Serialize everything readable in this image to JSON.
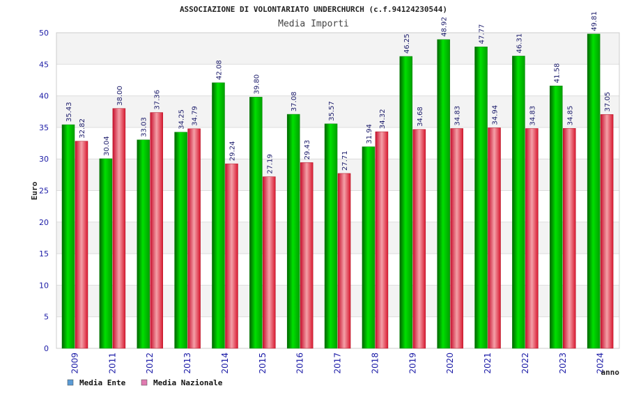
{
  "chart_data": {
    "type": "bar",
    "title": "ASSOCIAZIONE DI VOLONTARIATO UNDERCHURCH (c.f.94124230544)",
    "subtitle": "Media Importi",
    "xlabel": "anno",
    "ylabel": "Euro",
    "ylim": [
      0,
      50
    ],
    "yticks": [
      0,
      5,
      10,
      15,
      20,
      25,
      30,
      35,
      40,
      45,
      50
    ],
    "grid": true,
    "legend_position": "bottom-left",
    "categories": [
      "2009",
      "2011",
      "2012",
      "2013",
      "2014",
      "2015",
      "2016",
      "2017",
      "2018",
      "2019",
      "2020",
      "2021",
      "2022",
      "2023",
      "2024"
    ],
    "series": [
      {
        "name": "Media Ente",
        "color": "#00c800",
        "legend_color": "#5b9bd5",
        "values": [
          35.43,
          30.04,
          33.03,
          34.25,
          42.08,
          39.8,
          37.08,
          35.57,
          31.94,
          46.25,
          48.92,
          47.77,
          46.31,
          41.58,
          49.81
        ],
        "labels": [
          "35.43",
          "30.04",
          "33.03",
          "34.25",
          "42.08",
          "39.80",
          "37.08",
          "35.57",
          "31.94",
          "46.25",
          "48.92",
          "47.77",
          "46.31",
          "41.58",
          "49.81"
        ]
      },
      {
        "name": "Media Nazionale",
        "color": "#e8203a",
        "legend_color": "#e07ab0",
        "values": [
          32.82,
          38.0,
          37.36,
          34.79,
          29.24,
          27.19,
          29.43,
          27.71,
          34.32,
          34.68,
          34.83,
          34.94,
          34.83,
          34.85,
          37.05
        ],
        "labels": [
          "32.82",
          "38.00",
          "37.36",
          "34.79",
          "29.24",
          "27.19",
          "29.43",
          "27.71",
          "34.32",
          "34.68",
          "34.83",
          "34.94",
          "34.83",
          "34.85",
          "37.05"
        ]
      }
    ]
  }
}
